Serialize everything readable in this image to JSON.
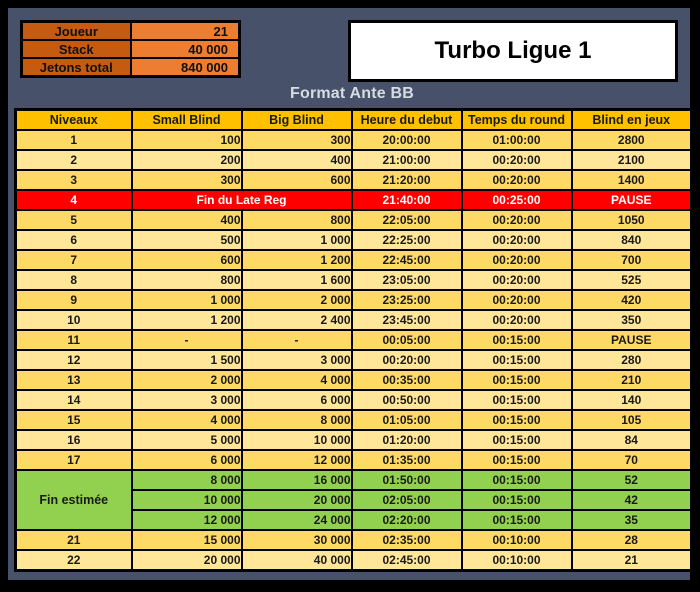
{
  "title": "Turbo Ligue 1",
  "subtitle": "Format Ante BB",
  "player_info": {
    "rows": [
      {
        "label": "Joueur",
        "value": "21"
      },
      {
        "label": "Stack",
        "value": "40 000"
      },
      {
        "label": "Jetons total",
        "value": "840 000"
      }
    ]
  },
  "blind_table": {
    "headers": [
      "Niveaux",
      "Small Blind",
      "Big Blind",
      "Heure du debut",
      "Temps du round",
      "Blind en jeux"
    ],
    "rows": [
      {
        "type": "normal",
        "shade": "dark",
        "level": "1",
        "small": "100",
        "big": "300",
        "start": "20:00:00",
        "round": "01:00:00",
        "blinds": "2800"
      },
      {
        "type": "normal",
        "shade": "light",
        "level": "2",
        "small": "200",
        "big": "400",
        "start": "21:00:00",
        "round": "00:20:00",
        "blinds": "2100"
      },
      {
        "type": "normal",
        "shade": "dark",
        "level": "3",
        "small": "300",
        "big": "600",
        "start": "21:20:00",
        "round": "00:20:00",
        "blinds": "1400"
      },
      {
        "type": "late_reg",
        "level": "4",
        "label": "Fin du Late Reg",
        "start": "21:40:00",
        "round": "00:25:00",
        "blinds": "PAUSE"
      },
      {
        "type": "normal",
        "shade": "dark",
        "level": "5",
        "small": "400",
        "big": "800",
        "start": "22:05:00",
        "round": "00:20:00",
        "blinds": "1050"
      },
      {
        "type": "normal",
        "shade": "light",
        "level": "6",
        "small": "500",
        "big": "1 000",
        "start": "22:25:00",
        "round": "00:20:00",
        "blinds": "840"
      },
      {
        "type": "normal",
        "shade": "dark",
        "level": "7",
        "small": "600",
        "big": "1 200",
        "start": "22:45:00",
        "round": "00:20:00",
        "blinds": "700"
      },
      {
        "type": "normal",
        "shade": "light",
        "level": "8",
        "small": "800",
        "big": "1 600",
        "start": "23:05:00",
        "round": "00:20:00",
        "blinds": "525"
      },
      {
        "type": "normal",
        "shade": "dark",
        "level": "9",
        "small": "1 000",
        "big": "2 000",
        "start": "23:25:00",
        "round": "00:20:00",
        "blinds": "420"
      },
      {
        "type": "normal",
        "shade": "light",
        "level": "10",
        "small": "1 200",
        "big": "2 400",
        "start": "23:45:00",
        "round": "00:20:00",
        "blinds": "350"
      },
      {
        "type": "normal",
        "shade": "dark",
        "level": "11",
        "small": "-",
        "big": "-",
        "start": "00:05:00",
        "round": "00:15:00",
        "blinds": "PAUSE"
      },
      {
        "type": "normal",
        "shade": "light",
        "level": "12",
        "small": "1 500",
        "big": "3 000",
        "start": "00:20:00",
        "round": "00:15:00",
        "blinds": "280"
      },
      {
        "type": "normal",
        "shade": "dark",
        "level": "13",
        "small": "2 000",
        "big": "4 000",
        "start": "00:35:00",
        "round": "00:15:00",
        "blinds": "210"
      },
      {
        "type": "normal",
        "shade": "light",
        "level": "14",
        "small": "3 000",
        "big": "6 000",
        "start": "00:50:00",
        "round": "00:15:00",
        "blinds": "140"
      },
      {
        "type": "normal",
        "shade": "dark",
        "level": "15",
        "small": "4 000",
        "big": "8 000",
        "start": "01:05:00",
        "round": "00:15:00",
        "blinds": "105"
      },
      {
        "type": "normal",
        "shade": "light",
        "level": "16",
        "small": "5 000",
        "big": "10 000",
        "start": "01:20:00",
        "round": "00:15:00",
        "blinds": "84"
      },
      {
        "type": "normal",
        "shade": "dark",
        "level": "17",
        "small": "6 000",
        "big": "12 000",
        "start": "01:35:00",
        "round": "00:15:00",
        "blinds": "70"
      },
      {
        "type": "estimated",
        "first": true,
        "group_label": "Fin estimée",
        "small": "8 000",
        "big": "16 000",
        "start": "01:50:00",
        "round": "00:15:00",
        "blinds": "52"
      },
      {
        "type": "estimated",
        "first": false,
        "small": "10 000",
        "big": "20 000",
        "start": "02:05:00",
        "round": "00:15:00",
        "blinds": "42"
      },
      {
        "type": "estimated",
        "first": false,
        "small": "12 000",
        "big": "24 000",
        "start": "02:20:00",
        "round": "00:15:00",
        "blinds": "35"
      },
      {
        "type": "normal",
        "shade": "dark",
        "level": "21",
        "small": "15 000",
        "big": "30 000",
        "start": "02:35:00",
        "round": "00:10:00",
        "blinds": "28"
      },
      {
        "type": "normal",
        "shade": "light",
        "level": "22",
        "small": "20 000",
        "big": "40 000",
        "start": "02:45:00",
        "round": "00:10:00",
        "blinds": "21"
      }
    ]
  },
  "colors": {
    "background": "#47526A",
    "frame": "#000000",
    "header_bg": "#FFC000",
    "row_dark": "#FFD966",
    "row_light": "#FFE699",
    "late_reg_bg": "#FF0000",
    "late_reg_text": "#FFFFFF",
    "estimated_bg": "#92D050",
    "info_label_bg": "#C55A11",
    "info_value_bg": "#ED7D31",
    "subtitle_text": "#D6DCE4",
    "title_box_bg": "#FFFFFF"
  }
}
